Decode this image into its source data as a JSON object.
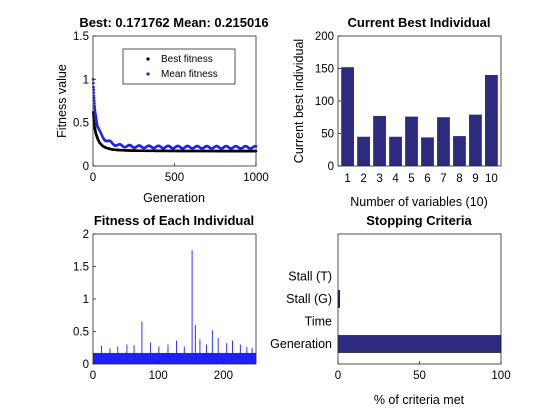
{
  "chart_data": [
    {
      "type": "scatter",
      "title": "Best: 0.171762 Mean: 0.215016",
      "xlabel": "Generation",
      "ylabel": "Fitness value",
      "xlim": [
        0,
        1000
      ],
      "ylim": [
        0,
        1.5
      ],
      "xticks": [
        "0",
        "500",
        "1000"
      ],
      "yticks": [
        "0",
        "0.5",
        "1",
        "1.5"
      ],
      "legend": "top-right",
      "series": [
        {
          "name": "Best fitness",
          "color": "#000000",
          "x": [
            1,
            5,
            10,
            15,
            20,
            30,
            40,
            50,
            60,
            80,
            100,
            120,
            150,
            200,
            250,
            300,
            400,
            500,
            600,
            700,
            800,
            900,
            1000
          ],
          "y": [
            0.62,
            0.52,
            0.45,
            0.4,
            0.36,
            0.31,
            0.27,
            0.25,
            0.23,
            0.21,
            0.2,
            0.19,
            0.185,
            0.18,
            0.178,
            0.176,
            0.175,
            0.174,
            0.173,
            0.173,
            0.172,
            0.172,
            0.172
          ]
        },
        {
          "name": "Mean fitness",
          "color": "#1f1fff",
          "x": [
            1,
            3,
            6,
            10,
            15,
            20,
            30,
            40,
            50,
            60,
            80,
            100,
            120,
            150,
            200,
            250,
            300,
            400,
            500,
            600,
            700,
            800,
            900,
            1000
          ],
          "y": [
            1.0,
            0.9,
            0.8,
            0.7,
            0.6,
            0.52,
            0.45,
            0.4,
            0.36,
            0.33,
            0.3,
            0.28,
            0.26,
            0.24,
            0.23,
            0.225,
            0.222,
            0.22,
            0.218,
            0.217,
            0.216,
            0.216,
            0.215,
            0.215
          ]
        }
      ]
    },
    {
      "type": "bar",
      "title": "Current Best Individual",
      "xlabel": "Number of variables (10)",
      "ylabel": "Current best individual",
      "categories": [
        "1",
        "2",
        "3",
        "4",
        "5",
        "6",
        "7",
        "8",
        "9",
        "10"
      ],
      "values": [
        152,
        45,
        77,
        45,
        76,
        44,
        75,
        46,
        79,
        140
      ],
      "ylim": [
        0,
        200
      ],
      "yticks": [
        "0",
        "50",
        "100",
        "150",
        "200"
      ],
      "color": "#2e2a80"
    },
    {
      "type": "bar",
      "title": "Fitness of Each Individual",
      "xlim": [
        0,
        250
      ],
      "ylim": [
        0,
        2
      ],
      "xticks": [
        "0",
        "100",
        "200"
      ],
      "yticks": [
        "0",
        "0.5",
        "1",
        "1.5",
        "2"
      ],
      "baseline": 0.17,
      "color": "#1f1fff",
      "spikes": [
        {
          "x": 13,
          "y": 0.28
        },
        {
          "x": 26,
          "y": 0.24
        },
        {
          "x": 38,
          "y": 0.27
        },
        {
          "x": 52,
          "y": 0.3
        },
        {
          "x": 63,
          "y": 0.29
        },
        {
          "x": 75,
          "y": 0.65
        },
        {
          "x": 88,
          "y": 0.33
        },
        {
          "x": 101,
          "y": 0.27
        },
        {
          "x": 115,
          "y": 0.3
        },
        {
          "x": 128,
          "y": 0.36
        },
        {
          "x": 140,
          "y": 0.27
        },
        {
          "x": 152,
          "y": 1.75
        },
        {
          "x": 157,
          "y": 0.6
        },
        {
          "x": 164,
          "y": 0.38
        },
        {
          "x": 174,
          "y": 0.3
        },
        {
          "x": 183,
          "y": 0.52
        },
        {
          "x": 192,
          "y": 0.4
        },
        {
          "x": 205,
          "y": 0.32
        },
        {
          "x": 214,
          "y": 0.36
        },
        {
          "x": 226,
          "y": 0.3
        },
        {
          "x": 236,
          "y": 0.26
        },
        {
          "x": 244,
          "y": 0.25
        }
      ]
    },
    {
      "type": "bar",
      "orientation": "horizontal",
      "title": "Stopping Criteria",
      "xlabel": "% of criteria met",
      "xlim": [
        0,
        100
      ],
      "xticks": [
        "0",
        "50",
        "100"
      ],
      "categories": [
        "Generation",
        "Time",
        "Stall (G)",
        "Stall (T)"
      ],
      "values": [
        100,
        0,
        1,
        0
      ],
      "color": "#2e2a80"
    }
  ]
}
